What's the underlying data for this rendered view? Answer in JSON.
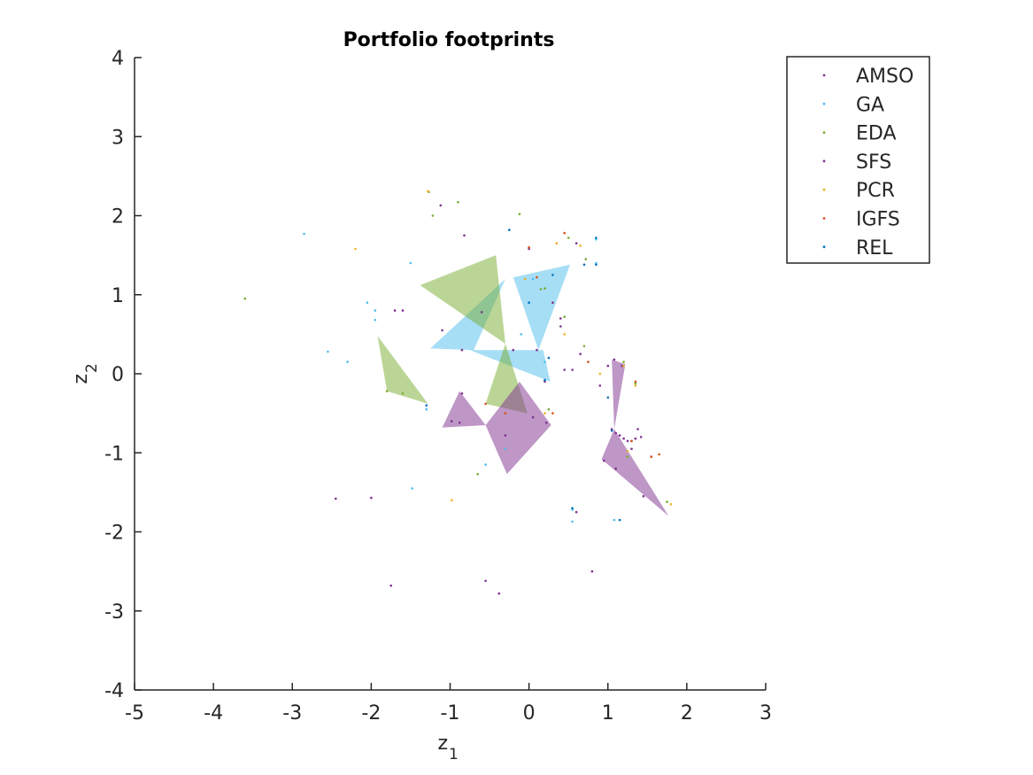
{
  "chart_data": {
    "type": "scatter",
    "title": "Portfolio footprints",
    "xlabel": "z",
    "xlabel_sub": "1",
    "ylabel": "z",
    "ylabel_sub": "2",
    "xlim": [
      -5,
      3
    ],
    "ylim": [
      -4,
      4
    ],
    "xticks": [
      -5,
      -4,
      -3,
      -2,
      -1,
      0,
      1,
      2,
      3
    ],
    "yticks": [
      -4,
      -3,
      -2,
      -1,
      0,
      1,
      2,
      3,
      4
    ],
    "grid": false,
    "legend_position": "top-right",
    "series": [
      {
        "name": "AMSO",
        "color": "#7e2f8e",
        "points": [
          [
            -1.12,
            2.13
          ],
          [
            -0.82,
            1.75
          ],
          [
            -1.1,
            0.55
          ],
          [
            -0.85,
            0.3
          ],
          [
            0.3,
            0.9
          ],
          [
            0.1,
            0.3
          ],
          [
            0.4,
            0.7
          ],
          [
            0.55,
            0.05
          ],
          [
            1.0,
            0.1
          ],
          [
            1.08,
            0.18
          ],
          [
            1.18,
            0.1
          ],
          [
            1.15,
            -0.78
          ],
          [
            1.2,
            -0.82
          ],
          [
            1.3,
            -0.85
          ],
          [
            1.42,
            -0.8
          ],
          [
            1.3,
            -0.95
          ],
          [
            1.55,
            -1.05
          ],
          [
            0.95,
            -1.1
          ],
          [
            1.1,
            -1.2
          ],
          [
            1.45,
            -1.55
          ],
          [
            0.8,
            -2.5
          ],
          [
            -0.55,
            -2.62
          ],
          [
            -0.38,
            -2.78
          ],
          [
            -1.75,
            -2.68
          ],
          [
            -2.0,
            -1.57
          ],
          [
            -2.45,
            -1.58
          ],
          [
            -0.88,
            -0.62
          ],
          [
            0.05,
            -0.55
          ],
          [
            -0.3,
            -0.78
          ],
          [
            -1.7,
            0.8
          ],
          [
            0.0,
            1.58
          ],
          [
            0.6,
            1.65
          ],
          [
            0.22,
            -0.62
          ]
        ]
      },
      {
        "name": "GA",
        "color": "#4dbeee",
        "points": [
          [
            -2.85,
            1.77
          ],
          [
            -1.5,
            1.4
          ],
          [
            -2.05,
            0.9
          ],
          [
            -1.95,
            0.8
          ],
          [
            -1.95,
            0.68
          ],
          [
            -2.55,
            0.28
          ],
          [
            -2.3,
            0.15
          ],
          [
            -1.3,
            -0.45
          ],
          [
            -1.48,
            -1.45
          ],
          [
            -0.55,
            -1.15
          ],
          [
            -0.3,
            -0.95
          ],
          [
            0.05,
            1.2
          ],
          [
            0.55,
            -1.72
          ],
          [
            0.55,
            -1.87
          ],
          [
            0.85,
            1.7
          ],
          [
            0.85,
            1.4
          ],
          [
            1.08,
            -1.85
          ],
          [
            -0.1,
            0.5
          ],
          [
            0.2,
            0.15
          ]
        ]
      },
      {
        "name": "EDA",
        "color": "#77ac30",
        "points": [
          [
            -1.27,
            2.3
          ],
          [
            -0.9,
            2.17
          ],
          [
            -1.22,
            2.0
          ],
          [
            -0.12,
            2.02
          ],
          [
            -3.6,
            0.95
          ],
          [
            0.15,
            1.07
          ],
          [
            0.2,
            1.08
          ],
          [
            0.45,
            0.72
          ],
          [
            0.7,
            0.35
          ],
          [
            1.2,
            0.15
          ],
          [
            1.35,
            -0.12
          ],
          [
            1.25,
            -1.05
          ],
          [
            1.75,
            -1.62
          ],
          [
            -0.65,
            -1.27
          ],
          [
            0.5,
            1.72
          ],
          [
            0.72,
            1.45
          ],
          [
            -1.8,
            -0.22
          ],
          [
            -1.6,
            -0.25
          ],
          [
            0.25,
            -0.45
          ]
        ]
      },
      {
        "name": "SFS",
        "color": "#7e2f8e",
        "points": [
          [
            -0.6,
            0.78
          ],
          [
            -1.6,
            0.8
          ],
          [
            -0.2,
            0.3
          ],
          [
            0.2,
            -0.1
          ],
          [
            0.45,
            0.05
          ],
          [
            0.65,
            0.25
          ],
          [
            0.9,
            -0.15
          ],
          [
            1.05,
            -0.7
          ],
          [
            1.25,
            -0.85
          ],
          [
            1.38,
            -0.7
          ],
          [
            1.1,
            -0.75
          ],
          [
            1.35,
            -0.82
          ],
          [
            0.6,
            -1.75
          ],
          [
            -0.98,
            -0.6
          ],
          [
            -0.85,
            -0.25
          ],
          [
            0.4,
            0.6
          ]
        ]
      },
      {
        "name": "PCR",
        "color": "#edb120",
        "points": [
          [
            -1.28,
            2.31
          ],
          [
            -2.2,
            1.58
          ],
          [
            -0.98,
            -1.6
          ],
          [
            0.35,
            1.65
          ],
          [
            0.65,
            1.62
          ],
          [
            0.45,
            0.5
          ],
          [
            0.9,
            0.0
          ],
          [
            1.2,
            0.1
          ],
          [
            1.35,
            -0.15
          ],
          [
            1.25,
            -0.98
          ],
          [
            1.8,
            -1.65
          ],
          [
            0.2,
            -0.5
          ],
          [
            -0.05,
            1.2
          ]
        ]
      },
      {
        "name": "IGFS",
        "color": "#d95319",
        "points": [
          [
            0.0,
            1.6
          ],
          [
            0.45,
            1.78
          ],
          [
            0.1,
            1.22
          ],
          [
            0.75,
            0.15
          ],
          [
            1.35,
            -0.1
          ],
          [
            1.65,
            -1.02
          ],
          [
            1.55,
            -1.05
          ],
          [
            1.3,
            -0.85
          ],
          [
            -0.3,
            -0.5
          ],
          [
            -0.55,
            -0.38
          ],
          [
            0.3,
            -0.5
          ]
        ]
      },
      {
        "name": "REL",
        "color": "#0072bd",
        "points": [
          [
            -0.25,
            1.82
          ],
          [
            0.3,
            1.25
          ],
          [
            0.7,
            1.38
          ],
          [
            0.85,
            1.38
          ],
          [
            0.85,
            1.72
          ],
          [
            0.0,
            0.9
          ],
          [
            0.25,
            0.2
          ],
          [
            1.0,
            -0.3
          ],
          [
            1.05,
            -0.72
          ],
          [
            1.15,
            -1.85
          ],
          [
            0.55,
            -1.7
          ],
          [
            -1.3,
            -0.4
          ],
          [
            0.2,
            -0.08
          ]
        ]
      }
    ],
    "footprints": [
      {
        "series": "GA",
        "color": "#4dbeee",
        "polygon": [
          [
            -1.25,
            0.32
          ],
          [
            -0.3,
            1.2
          ],
          [
            -0.7,
            0.3
          ]
        ]
      },
      {
        "series": "GA",
        "color": "#4dbeee",
        "polygon": [
          [
            -0.2,
            1.22
          ],
          [
            0.52,
            1.38
          ],
          [
            0.12,
            0.3
          ]
        ]
      },
      {
        "series": "GA",
        "color": "#4dbeee",
        "polygon": [
          [
            -0.75,
            0.3
          ],
          [
            0.18,
            0.3
          ],
          [
            0.27,
            -0.1
          ]
        ]
      },
      {
        "series": "EDA",
        "color": "#77ac30",
        "polygon": [
          [
            -1.38,
            1.12
          ],
          [
            -0.42,
            1.5
          ],
          [
            -0.3,
            0.38
          ]
        ]
      },
      {
        "series": "EDA",
        "color": "#77ac30",
        "polygon": [
          [
            -1.92,
            0.48
          ],
          [
            -1.28,
            -0.38
          ],
          [
            -1.8,
            -0.22
          ]
        ]
      },
      {
        "series": "EDA",
        "color": "#77ac30",
        "polygon": [
          [
            -0.3,
            0.38
          ],
          [
            -0.55,
            -0.38
          ],
          [
            -0.02,
            -0.5
          ]
        ]
      },
      {
        "series": "SFS",
        "color": "#7e2f8e",
        "polygon": [
          [
            -0.88,
            -0.22
          ],
          [
            -1.1,
            -0.68
          ],
          [
            -0.55,
            -0.65
          ]
        ]
      },
      {
        "series": "SFS",
        "color": "#7e2f8e",
        "polygon": [
          [
            -0.12,
            -0.1
          ],
          [
            -0.55,
            -0.65
          ],
          [
            -0.28,
            -1.27
          ],
          [
            0.28,
            -0.65
          ]
        ]
      },
      {
        "series": "SFS",
        "color": "#7e2f8e",
        "polygon": [
          [
            1.05,
            0.18
          ],
          [
            1.22,
            0.12
          ],
          [
            1.08,
            -0.7
          ]
        ]
      },
      {
        "series": "SFS",
        "color": "#7e2f8e",
        "polygon": [
          [
            1.08,
            -0.7
          ],
          [
            0.92,
            -1.08
          ],
          [
            1.77,
            -1.8
          ]
        ]
      }
    ]
  }
}
